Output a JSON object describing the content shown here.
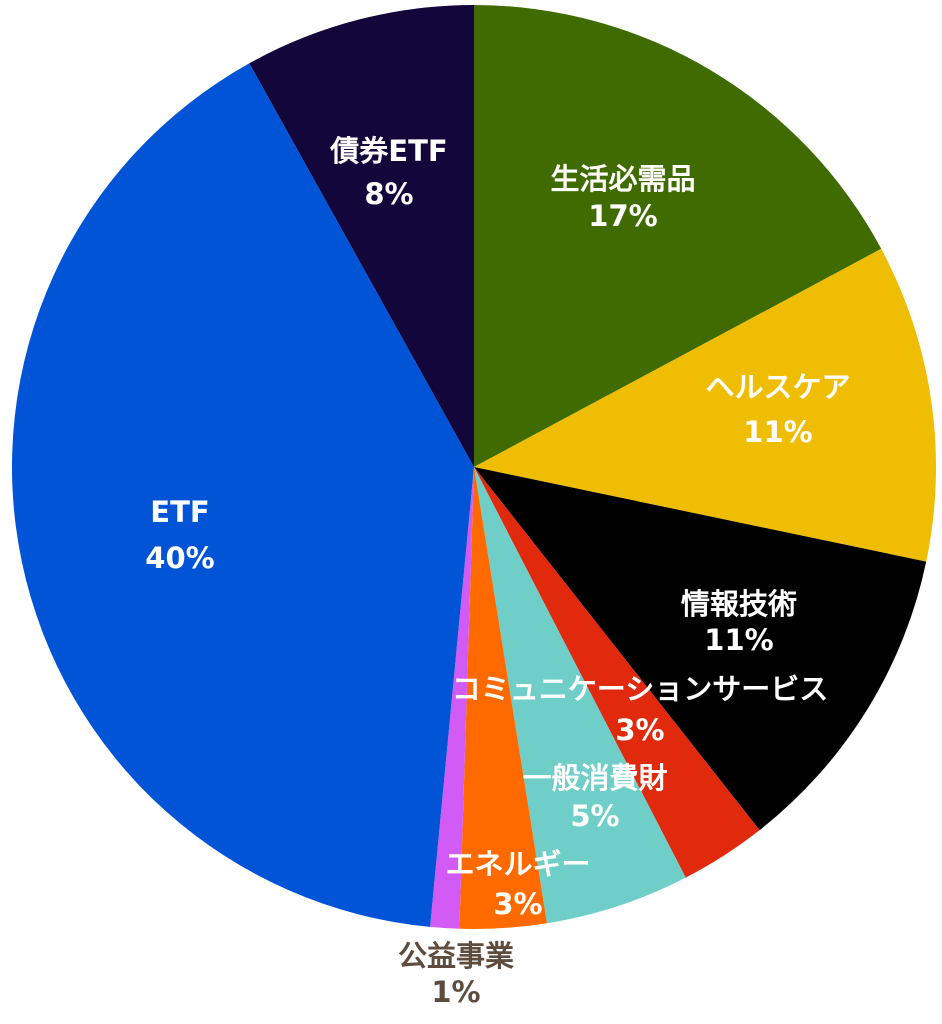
{
  "chart_data": {
    "type": "pie",
    "title": "",
    "start_angle_deg": 0,
    "direction": "clockwise",
    "slices": [
      {
        "label": "生活必需品",
        "value": 17,
        "value_label": "17%",
        "color": "#3f6b00",
        "text_color": "#ffffff"
      },
      {
        "label": "ヘルスケア",
        "value": 11,
        "value_label": "11%",
        "color": "#f0bd05",
        "text_color": "#ffffff"
      },
      {
        "label": "情報技術",
        "value": 11,
        "value_label": "11%",
        "color": "#000000",
        "text_color": "#ffffff"
      },
      {
        "label": "コミュニケーションサービス",
        "value": 3,
        "value_label": "3%",
        "color": "#e12a0d",
        "text_color": "#ffffff"
      },
      {
        "label": "一般消費財",
        "value": 5,
        "value_label": "5%",
        "color": "#6fcec7",
        "text_color": "#ffffff"
      },
      {
        "label": "エネルギー",
        "value": 3,
        "value_label": "3%",
        "color": "#ff6a00",
        "text_color": "#ffffff"
      },
      {
        "label": "公益事業",
        "value": 1,
        "value_label": "1%",
        "color": "#d35bf5",
        "text_color": "#5e4d3f"
      },
      {
        "label": "ETF",
        "value": 40,
        "value_label": "40%",
        "color": "#0254d6",
        "text_color": "#ffffff"
      },
      {
        "label": "債券ETF",
        "value": 8,
        "value_label": "8%",
        "color": "#12063a",
        "text_color": "#ffffff"
      }
    ]
  }
}
